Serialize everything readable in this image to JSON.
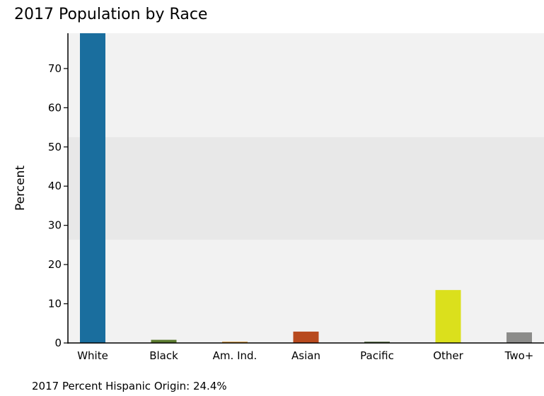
{
  "chart_data": {
    "type": "bar",
    "title": "2017 Population by Race",
    "xlabel": "",
    "ylabel": "Percent",
    "categories": [
      "White",
      "Black",
      "Am. Ind.",
      "Asian",
      "Pacific",
      "Other",
      "Two+"
    ],
    "values": [
      79,
      0.8,
      0.3,
      2.9,
      0.3,
      13.5,
      2.7
    ],
    "colors": [
      "#1a6e9e",
      "#5a7a2e",
      "#d08a1e",
      "#b84a1e",
      "#3f5a2a",
      "#dbe01c",
      "#8c8c8a"
    ],
    "ylim": [
      0,
      79
    ],
    "yticks": [
      0,
      10,
      20,
      30,
      40,
      50,
      60,
      70
    ],
    "grid": false,
    "legend": "none"
  },
  "footer": {
    "note": "2017 Percent Hispanic Origin: 24.4%"
  }
}
